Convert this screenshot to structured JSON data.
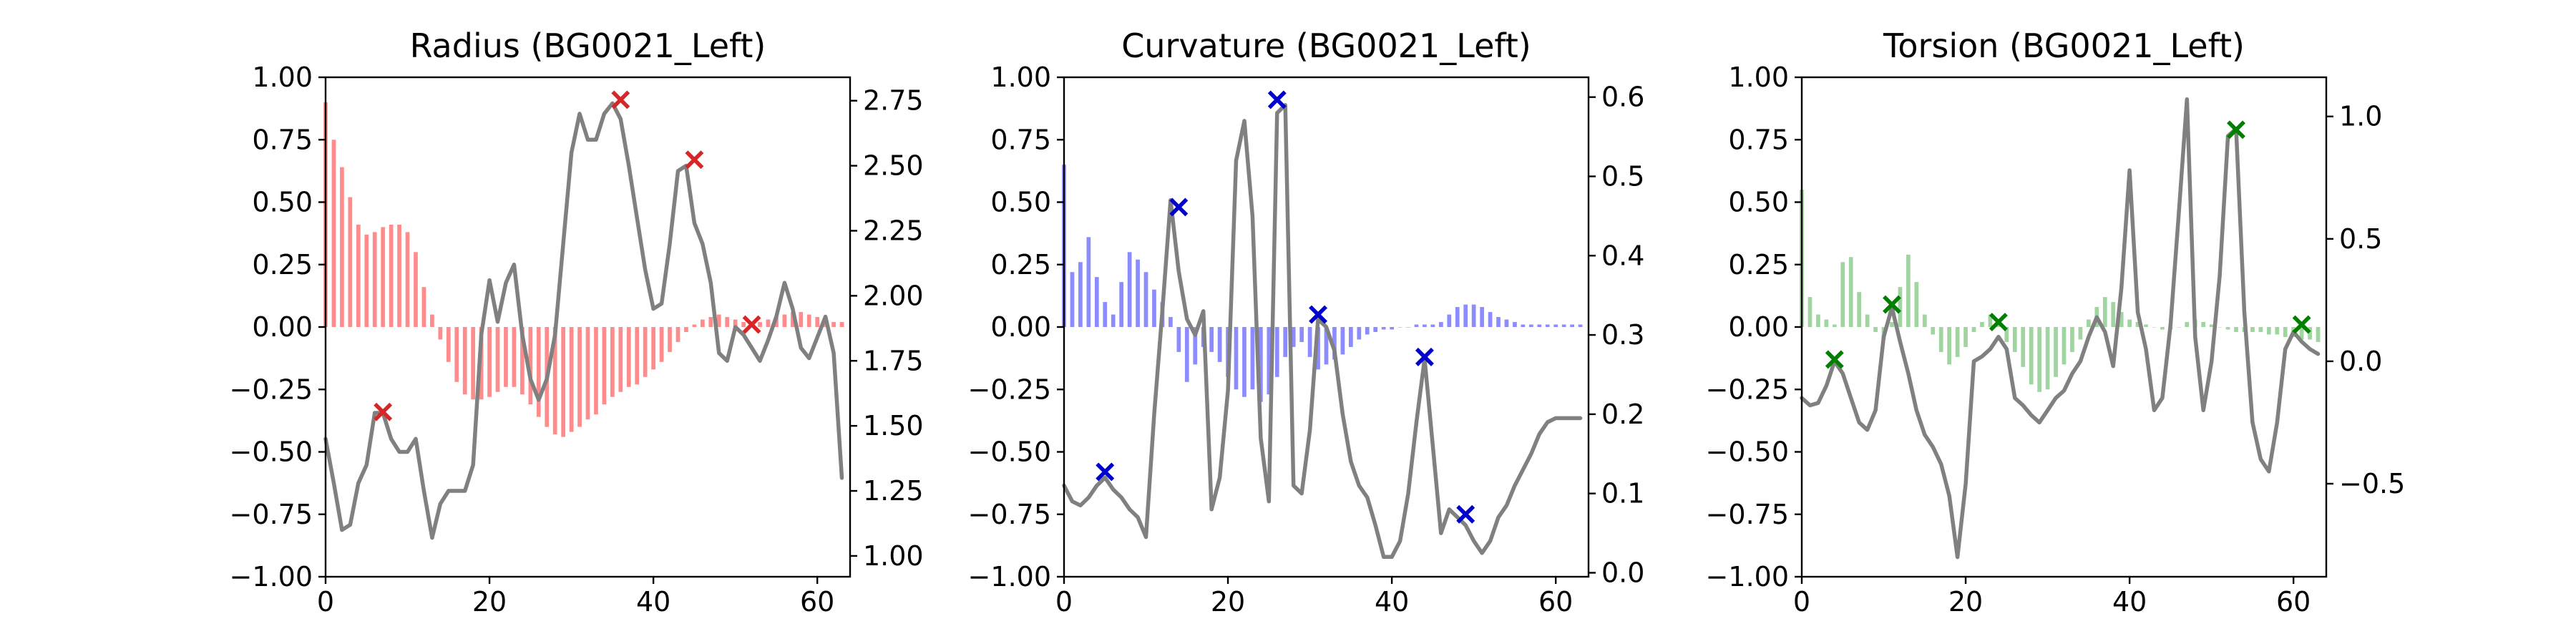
{
  "chart_data": [
    {
      "type": "bar+line",
      "title": "Radius (BG0021_Left)",
      "bar_color": "#ff0000",
      "marker_color": "#d62728",
      "xlim": [
        0,
        64
      ],
      "ylim_left": [
        -1.0,
        1.0
      ],
      "ylim_right": [
        0.92,
        2.84
      ],
      "x_ticks": [
        0,
        20,
        40,
        60
      ],
      "y_left_ticks": [
        -1.0,
        -0.75,
        -0.5,
        -0.25,
        0.0,
        0.25,
        0.5,
        0.75,
        1.0
      ],
      "y_left_tick_labels": [
        "−1.00",
        "−0.75",
        "−0.50",
        "−0.25",
        "0.00",
        "0.25",
        "0.50",
        "0.75",
        "1.00"
      ],
      "y_right_ticks": [
        1.0,
        1.25,
        1.5,
        1.75,
        2.0,
        2.25,
        2.5,
        2.75
      ],
      "y_right_tick_labels": [
        "1.00",
        "1.25",
        "1.50",
        "1.75",
        "2.00",
        "2.25",
        "2.50",
        "2.75"
      ],
      "bars": [
        0.9,
        0.75,
        0.64,
        0.52,
        0.41,
        0.37,
        0.38,
        0.4,
        0.41,
        0.41,
        0.38,
        0.3,
        0.16,
        0.05,
        -0.05,
        -0.14,
        -0.22,
        -0.27,
        -0.29,
        -0.29,
        -0.28,
        -0.26,
        -0.24,
        -0.24,
        -0.27,
        -0.31,
        -0.36,
        -0.4,
        -0.43,
        -0.44,
        -0.42,
        -0.4,
        -0.37,
        -0.35,
        -0.31,
        -0.28,
        -0.26,
        -0.24,
        -0.23,
        -0.2,
        -0.17,
        -0.14,
        -0.1,
        -0.06,
        -0.02,
        0.01,
        0.03,
        0.04,
        0.05,
        0.04,
        0.03,
        0.02,
        0.01,
        0.02,
        0.03,
        0.04,
        0.05,
        0.06,
        0.06,
        0.05,
        0.04,
        0.03,
        0.02,
        0.02
      ],
      "line": [
        1.45,
        1.28,
        1.1,
        1.12,
        1.28,
        1.35,
        1.55,
        1.55,
        1.45,
        1.4,
        1.4,
        1.45,
        1.25,
        1.07,
        1.2,
        1.25,
        1.25,
        1.25,
        1.35,
        1.85,
        2.06,
        1.9,
        2.05,
        2.12,
        1.85,
        1.68,
        1.6,
        1.68,
        1.85,
        2.2,
        2.55,
        2.7,
        2.6,
        2.6,
        2.7,
        2.74,
        2.68,
        2.5,
        2.3,
        2.1,
        1.95,
        1.97,
        2.2,
        2.48,
        2.5,
        2.28,
        2.2,
        2.05,
        1.78,
        1.75,
        1.88,
        1.85,
        1.8,
        1.75,
        1.83,
        1.92,
        2.05,
        1.95,
        1.8,
        1.76,
        1.84,
        1.92,
        1.78,
        1.3
      ],
      "markers": [
        {
          "x": 7,
          "y": -0.34
        },
        {
          "x": 36,
          "y": 0.91
        },
        {
          "x": 45,
          "y": 0.67
        },
        {
          "x": 52,
          "y": 0.01
        }
      ]
    },
    {
      "type": "bar+line",
      "title": "Curvature (BG0021_Left)",
      "bar_color": "#0000ff",
      "marker_color": "#0000cc",
      "xlim": [
        0,
        64
      ],
      "ylim_left": [
        -1.0,
        1.0
      ],
      "ylim_right": [
        -0.005,
        0.625
      ],
      "x_ticks": [
        0,
        20,
        40,
        60
      ],
      "y_left_ticks": [
        -1.0,
        -0.75,
        -0.5,
        -0.25,
        0.0,
        0.25,
        0.5,
        0.75,
        1.0
      ],
      "y_left_tick_labels": [
        "−1.00",
        "−0.75",
        "−0.50",
        "−0.25",
        "0.00",
        "0.25",
        "0.50",
        "0.75",
        "1.00"
      ],
      "y_right_ticks": [
        0.0,
        0.1,
        0.2,
        0.3,
        0.4,
        0.5,
        0.6
      ],
      "y_right_tick_labels": [
        "0.0",
        "0.1",
        "0.2",
        "0.3",
        "0.4",
        "0.5",
        "0.6"
      ],
      "bars": [
        0.65,
        0.22,
        0.26,
        0.36,
        0.2,
        0.1,
        0.05,
        0.18,
        0.3,
        0.27,
        0.22,
        0.15,
        0.1,
        0.04,
        -0.1,
        -0.22,
        -0.15,
        -0.08,
        -0.1,
        -0.14,
        -0.2,
        -0.25,
        -0.28,
        -0.25,
        -0.3,
        -0.27,
        -0.2,
        -0.12,
        -0.08,
        -0.06,
        -0.12,
        -0.17,
        -0.15,
        -0.13,
        -0.11,
        -0.08,
        -0.05,
        -0.03,
        -0.02,
        -0.01,
        -0.01,
        0.0,
        0.0,
        0.01,
        0.01,
        0.01,
        0.02,
        0.05,
        0.08,
        0.09,
        0.09,
        0.08,
        0.06,
        0.04,
        0.03,
        0.02,
        0.01,
        0.01,
        0.01,
        0.01,
        0.01,
        0.01,
        0.01,
        0.01
      ],
      "line": [
        0.11,
        0.09,
        0.085,
        0.095,
        0.11,
        0.12,
        0.105,
        0.095,
        0.08,
        0.07,
        0.045,
        0.2,
        0.33,
        0.47,
        0.38,
        0.32,
        0.3,
        0.33,
        0.08,
        0.12,
        0.23,
        0.52,
        0.57,
        0.45,
        0.17,
        0.09,
        0.58,
        0.59,
        0.11,
        0.1,
        0.18,
        0.32,
        0.31,
        0.28,
        0.2,
        0.14,
        0.11,
        0.095,
        0.06,
        0.02,
        0.02,
        0.04,
        0.1,
        0.19,
        0.27,
        0.16,
        0.05,
        0.08,
        0.07,
        0.06,
        0.04,
        0.025,
        0.04,
        0.07,
        0.085,
        0.11,
        0.13,
        0.15,
        0.175,
        0.19,
        0.195,
        0.195,
        0.195,
        0.195
      ],
      "markers": [
        {
          "x": 5,
          "y": -0.58
        },
        {
          "x": 14,
          "y": 0.48
        },
        {
          "x": 26,
          "y": 0.91
        },
        {
          "x": 31,
          "y": 0.05
        },
        {
          "x": 44,
          "y": -0.12
        },
        {
          "x": 49,
          "y": -0.75
        }
      ]
    },
    {
      "type": "bar+line",
      "title": "Torsion (BG0021_Left)",
      "bar_color": "#2ca02c",
      "marker_color": "#007f00",
      "xlim": [
        0,
        64
      ],
      "ylim_left": [
        -1.0,
        1.0
      ],
      "ylim_right": [
        -0.88,
        1.16
      ],
      "x_ticks": [
        0,
        20,
        40,
        60
      ],
      "y_left_ticks": [
        -1.0,
        -0.75,
        -0.5,
        -0.25,
        0.0,
        0.25,
        0.5,
        0.75,
        1.0
      ],
      "y_left_tick_labels": [
        "−1.00",
        "−0.75",
        "−0.50",
        "−0.25",
        "0.00",
        "0.25",
        "0.50",
        "0.75",
        "1.00"
      ],
      "y_right_ticks": [
        -0.5,
        0.0,
        0.5,
        1.0
      ],
      "y_right_tick_labels": [
        "−0.5",
        "0.0",
        "0.5",
        "1.0"
      ],
      "bars": [
        0.55,
        0.12,
        0.05,
        0.03,
        0.01,
        0.26,
        0.28,
        0.14,
        0.05,
        -0.02,
        -0.05,
        0.02,
        0.16,
        0.29,
        0.18,
        0.05,
        -0.03,
        -0.1,
        -0.15,
        -0.12,
        -0.08,
        -0.02,
        0.02,
        0.05,
        0.02,
        -0.06,
        -0.1,
        -0.16,
        -0.23,
        -0.26,
        -0.25,
        -0.2,
        -0.15,
        -0.1,
        -0.05,
        0.03,
        0.08,
        0.12,
        0.1,
        0.06,
        0.03,
        0.02,
        0.01,
        0.0,
        -0.01,
        -0.01,
        0.0,
        0.02,
        0.03,
        0.02,
        0.01,
        0.0,
        -0.01,
        -0.02,
        -0.02,
        -0.02,
        -0.02,
        -0.03,
        -0.03,
        -0.04,
        -0.04,
        -0.05,
        -0.05,
        -0.06
      ],
      "line": [
        -0.15,
        -0.18,
        -0.17,
        -0.1,
        0.0,
        -0.05,
        -0.15,
        -0.25,
        -0.28,
        -0.2,
        0.1,
        0.22,
        0.08,
        -0.05,
        -0.2,
        -0.3,
        -0.35,
        -0.42,
        -0.55,
        -0.8,
        -0.5,
        0.0,
        0.02,
        0.05,
        0.1,
        0.05,
        -0.15,
        -0.18,
        -0.22,
        -0.25,
        -0.2,
        -0.15,
        -0.12,
        -0.05,
        0.0,
        0.1,
        0.18,
        0.12,
        -0.02,
        0.3,
        0.78,
        0.2,
        0.05,
        -0.2,
        -0.15,
        0.15,
        0.6,
        1.07,
        0.1,
        -0.2,
        0.0,
        0.35,
        0.92,
        0.95,
        0.2,
        -0.25,
        -0.4,
        -0.45,
        -0.25,
        0.05,
        0.12,
        0.08,
        0.05,
        0.03
      ],
      "markers": [
        {
          "x": 4,
          "y": -0.13
        },
        {
          "x": 11,
          "y": 0.09
        },
        {
          "x": 24,
          "y": 0.02
        },
        {
          "x": 53,
          "y": 0.79
        },
        {
          "x": 61,
          "y": 0.01
        }
      ]
    }
  ]
}
